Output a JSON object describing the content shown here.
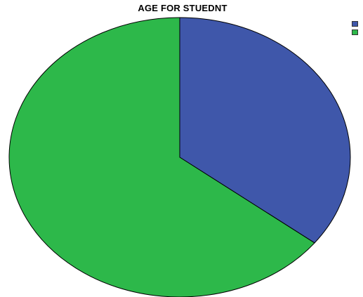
{
  "chart_data": {
    "type": "pie",
    "title": "AGE FOR STUEDNT",
    "slices": [
      {
        "label": "",
        "value": 35.5,
        "color": "#3F57AA"
      },
      {
        "label": "",
        "value": 64.5,
        "color": "#2DB84A"
      }
    ],
    "start_angle_deg": 0,
    "direction": "clockwise",
    "legend_position": "top-right",
    "stroke_color": "#000000"
  }
}
